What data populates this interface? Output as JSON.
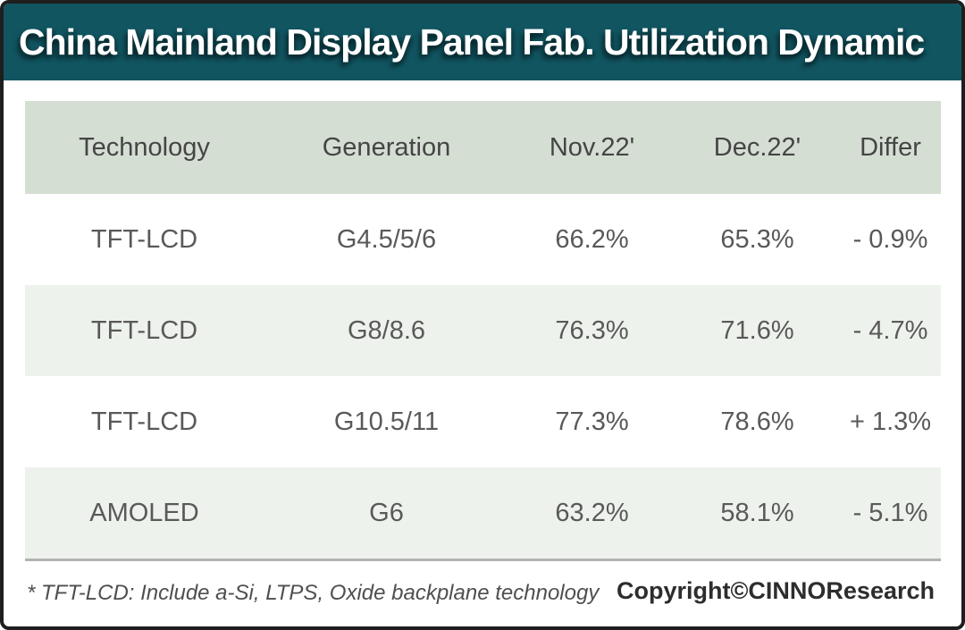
{
  "title": "China Mainland Display Panel Fab. Utilization Dynamic",
  "chart_data": {
    "type": "table",
    "title": "China Mainland Display Panel Fab. Utilization Dynamic",
    "columns": [
      "Technology",
      "Generation",
      "Nov.22'",
      "Dec.22'",
      "Differ"
    ],
    "rows": [
      [
        "TFT-LCD",
        "G4.5/5/6",
        "66.2%",
        "65.3%",
        "- 0.9%"
      ],
      [
        "TFT-LCD",
        "G8/8.6",
        "76.3%",
        "71.6%",
        "- 4.7%"
      ],
      [
        "TFT-LCD",
        "G10.5/11",
        "77.3%",
        "78.6%",
        "+ 1.3%"
      ],
      [
        "AMOLED",
        "G6",
        "63.2%",
        "58.1%",
        "- 5.1%"
      ]
    ],
    "footnote": "* TFT-LCD: Include a-Si, LTPS, Oxide backplane technology",
    "copyright": "Copyright©CINNOResearch"
  },
  "colors": {
    "title_bar_bg": "#115561",
    "title_text": "#ffffff",
    "table_header_bg": "#d5ded3",
    "row_alt_bg": "#eef2ed",
    "row_bg": "#ffffff",
    "header_text": "#454545",
    "cell_text": "#595959",
    "divider": "#b3b3b3",
    "frame_border": "#1e1e1e"
  }
}
